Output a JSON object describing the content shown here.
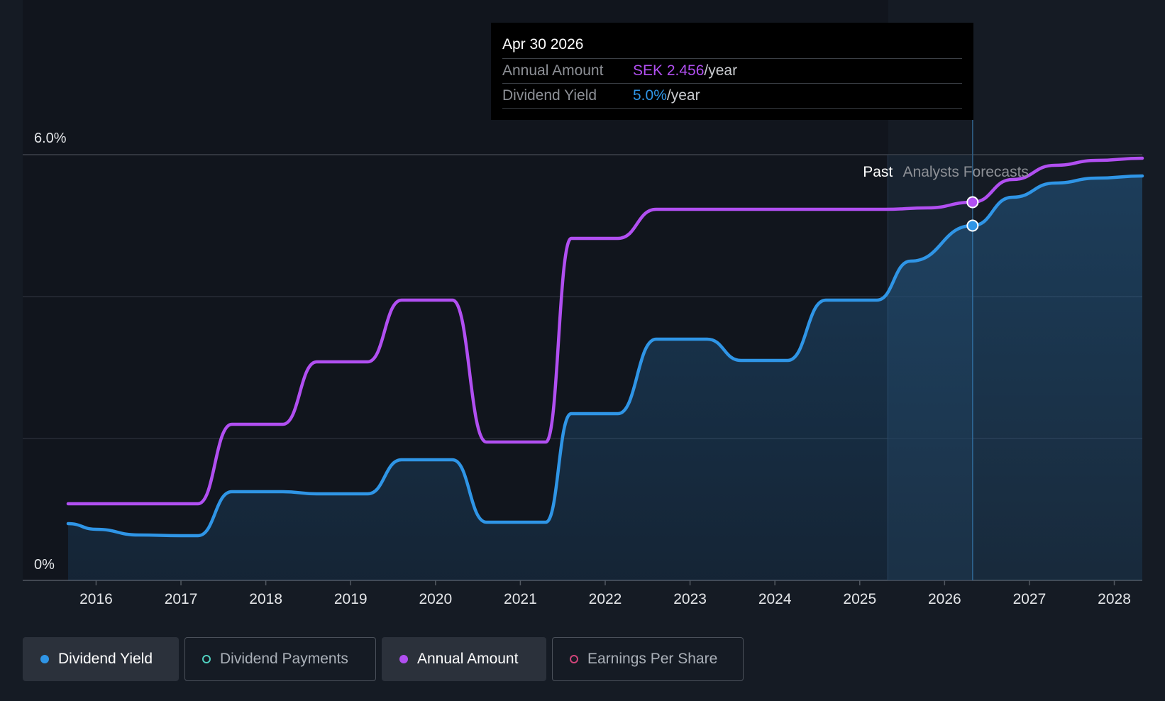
{
  "tooltip": {
    "date": "Apr 30 2026",
    "rows": [
      {
        "label": "Annual Amount",
        "value": "SEK 2.456",
        "unit": "/year"
      },
      {
        "label": "Dividend Yield",
        "value": "5.0%",
        "unit": "/year"
      }
    ]
  },
  "colors": {
    "dividend_yield": "#2f95e6",
    "annual_amount": "#b14ff1",
    "dividend_payments": "#4fcfbf",
    "earnings_per_share": "#d0457a",
    "background": "#151b24"
  },
  "legend": [
    {
      "label": "Dividend Yield",
      "active": true
    },
    {
      "label": "Dividend Payments",
      "active": false
    },
    {
      "label": "Annual Amount",
      "active": true
    },
    {
      "label": "Earnings Per Share",
      "active": false
    }
  ],
  "chart_data": {
    "type": "line",
    "y_labels": {
      "top": "6.0%",
      "bottom": "0%"
    },
    "ylim": [
      0,
      6.0
    ],
    "xlim": [
      2015.67,
      2028.33
    ],
    "x_ticks": [
      "2016",
      "2017",
      "2018",
      "2019",
      "2020",
      "2021",
      "2022",
      "2023",
      "2024",
      "2025",
      "2026",
      "2027",
      "2028"
    ],
    "past_label": "Past",
    "forecast_label": "Analysts Forecasts",
    "forecast_start": 2025.33,
    "hover_x": 2026.33,
    "series": [
      {
        "name": "Dividend Yield",
        "unit": "%",
        "area": true,
        "points": [
          [
            2015.67,
            0.8
          ],
          [
            2016.0,
            0.72
          ],
          [
            2016.5,
            0.64
          ],
          [
            2017.0,
            0.63
          ],
          [
            2017.2,
            0.63
          ],
          [
            2017.6,
            1.25
          ],
          [
            2018.2,
            1.25
          ],
          [
            2018.6,
            1.22
          ],
          [
            2019.2,
            1.22
          ],
          [
            2019.6,
            1.7
          ],
          [
            2020.2,
            1.7
          ],
          [
            2020.6,
            0.82
          ],
          [
            2021.3,
            0.82
          ],
          [
            2021.6,
            2.35
          ],
          [
            2022.15,
            2.35
          ],
          [
            2022.6,
            3.4
          ],
          [
            2023.2,
            3.4
          ],
          [
            2023.6,
            3.1
          ],
          [
            2024.15,
            3.1
          ],
          [
            2024.6,
            3.95
          ],
          [
            2025.2,
            3.95
          ],
          [
            2025.6,
            4.5
          ],
          [
            2026.33,
            5.0
          ],
          [
            2026.8,
            5.4
          ],
          [
            2027.3,
            5.6
          ],
          [
            2027.8,
            5.67
          ],
          [
            2028.33,
            5.7
          ]
        ]
      },
      {
        "name": "Annual Amount",
        "unit": "SEK",
        "area": false,
        "points": [
          [
            2015.67,
            1.08
          ],
          [
            2017.2,
            1.08
          ],
          [
            2017.6,
            2.2
          ],
          [
            2018.2,
            2.2
          ],
          [
            2018.6,
            3.08
          ],
          [
            2019.2,
            3.08
          ],
          [
            2019.6,
            3.95
          ],
          [
            2020.2,
            3.95
          ],
          [
            2020.6,
            1.95
          ],
          [
            2021.3,
            1.95
          ],
          [
            2021.6,
            4.82
          ],
          [
            2022.15,
            4.82
          ],
          [
            2022.6,
            5.23
          ],
          [
            2025.3,
            5.23
          ],
          [
            2025.8,
            5.25
          ],
          [
            2026.33,
            5.33
          ],
          [
            2026.8,
            5.65
          ],
          [
            2027.3,
            5.85
          ],
          [
            2027.8,
            5.92
          ],
          [
            2028.33,
            5.95
          ]
        ]
      }
    ]
  }
}
